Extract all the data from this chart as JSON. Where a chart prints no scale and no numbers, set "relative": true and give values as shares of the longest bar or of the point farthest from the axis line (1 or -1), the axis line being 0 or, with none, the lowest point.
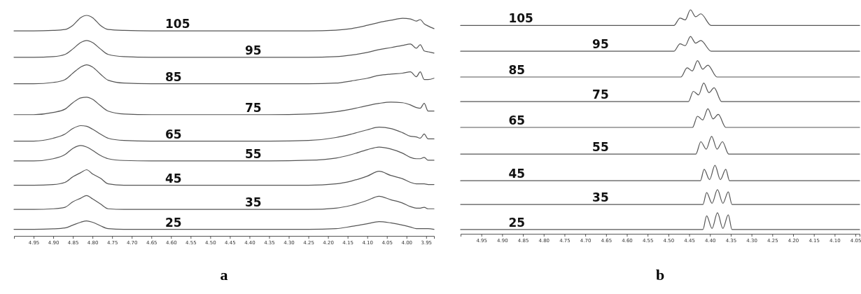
{
  "chart_data": [
    {
      "type": "line",
      "title": "a",
      "relative": true,
      "xlim": [
        5.0,
        3.93
      ],
      "xticks": [
        4.95,
        {
          "value": 4.9,
          "label": "4.90"
        },
        4.85,
        {
          "value": 4.8,
          "label": "4.80"
        },
        4.75,
        {
          "value": 4.7,
          "label": "4.70"
        },
        4.65,
        {
          "value": 4.6,
          "label": "4.60"
        },
        4.55,
        {
          "value": 4.5,
          "label": "4.50"
        },
        4.45,
        {
          "value": 4.4,
          "label": "4.40"
        },
        4.35,
        {
          "value": 4.3,
          "label": "4.30"
        },
        4.25,
        {
          "value": 4.2,
          "label": "4.20"
        },
        4.15,
        {
          "value": 4.1,
          "label": "4.10"
        },
        4.05,
        {
          "value": 4,
          "label": "4.00"
        },
        3.95
      ],
      "x": [
        5.0,
        4.95,
        4.9,
        4.87,
        4.85,
        4.83,
        4.815,
        4.8,
        4.78,
        4.76,
        4.72,
        4.65,
        4.5,
        4.35,
        4.25,
        4.18,
        4.14,
        4.1,
        4.07,
        4.04,
        4.01,
        3.99,
        3.975,
        3.965,
        3.955,
        3.945,
        3.93
      ],
      "series": [
        {
          "name": "105",
          "color": "#555555",
          "values": [
            0.93,
            0.93,
            0.932,
            0.936,
            0.955,
            0.99,
            1.0,
            0.99,
            0.955,
            0.936,
            0.932,
            0.93,
            0.93,
            0.93,
            0.93,
            0.933,
            0.94,
            0.955,
            0.968,
            0.978,
            0.987,
            0.984,
            0.974,
            0.981,
            0.962,
            0.952,
            0.94
          ]
        },
        {
          "name": "95",
          "color": "#555555",
          "values": [
            0.81,
            0.81,
            0.813,
            0.823,
            0.848,
            0.877,
            0.886,
            0.877,
            0.848,
            0.823,
            0.813,
            0.81,
            0.81,
            0.81,
            0.81,
            0.813,
            0.82,
            0.832,
            0.845,
            0.854,
            0.864,
            0.87,
            0.851,
            0.867,
            0.839,
            0.835,
            0.829
          ]
        },
        {
          "name": "85",
          "color": "#555555",
          "values": [
            0.69,
            0.69,
            0.696,
            0.709,
            0.738,
            0.766,
            0.776,
            0.766,
            0.734,
            0.706,
            0.693,
            0.69,
            0.69,
            0.69,
            0.69,
            0.693,
            0.703,
            0.715,
            0.728,
            0.734,
            0.738,
            0.744,
            0.722,
            0.744,
            0.709,
            0.709,
            0.715
          ]
        },
        {
          "name": "75",
          "color": "#555555",
          "values": [
            0.55,
            0.55,
            0.56,
            0.575,
            0.604,
            0.626,
            0.629,
            0.62,
            0.591,
            0.566,
            0.553,
            0.55,
            0.55,
            0.55,
            0.553,
            0.563,
            0.575,
            0.591,
            0.601,
            0.607,
            0.604,
            0.594,
            0.582,
            0.579,
            0.601,
            0.566,
            0.566
          ]
        },
        {
          "name": "65",
          "color": "#555555",
          "values": [
            0.43,
            0.43,
            0.443,
            0.462,
            0.487,
            0.5,
            0.497,
            0.484,
            0.462,
            0.443,
            0.433,
            0.43,
            0.43,
            0.43,
            0.433,
            0.446,
            0.462,
            0.481,
            0.493,
            0.487,
            0.468,
            0.452,
            0.449,
            0.443,
            0.462,
            0.44,
            0.44
          ]
        },
        {
          "name": "55",
          "color": "#555555",
          "values": [
            0.34,
            0.34,
            0.35,
            0.369,
            0.397,
            0.41,
            0.403,
            0.388,
            0.365,
            0.35,
            0.342,
            0.34,
            0.34,
            0.34,
            0.343,
            0.353,
            0.369,
            0.391,
            0.403,
            0.394,
            0.375,
            0.356,
            0.35,
            0.35,
            0.356,
            0.343,
            0.343
          ]
        },
        {
          "name": "45",
          "color": "#555555",
          "values": [
            0.23,
            0.23,
            0.233,
            0.243,
            0.268,
            0.287,
            0.3,
            0.281,
            0.262,
            0.236,
            0.23,
            0.23,
            0.23,
            0.23,
            0.23,
            0.236,
            0.249,
            0.271,
            0.293,
            0.274,
            0.259,
            0.243,
            0.236,
            0.236,
            0.236,
            0.233,
            0.233
          ]
        },
        {
          "name": "35",
          "color": "#555555",
          "values": [
            0.12,
            0.12,
            0.123,
            0.13,
            0.155,
            0.171,
            0.183,
            0.168,
            0.145,
            0.123,
            0.12,
            0.12,
            0.12,
            0.12,
            0.12,
            0.126,
            0.139,
            0.161,
            0.18,
            0.164,
            0.149,
            0.133,
            0.126,
            0.126,
            0.13,
            0.123,
            0.123
          ]
        },
        {
          "name": "25",
          "color": "#555555",
          "values": [
            0.03,
            0.03,
            0.032,
            0.036,
            0.049,
            0.062,
            0.068,
            0.062,
            0.046,
            0.033,
            0.03,
            0.03,
            0.03,
            0.03,
            0.03,
            0.033,
            0.043,
            0.055,
            0.065,
            0.059,
            0.049,
            0.04,
            0.033,
            0.033,
            0.033,
            0.033,
            0.03
          ]
        }
      ]
    },
    {
      "type": "line",
      "title": "b",
      "relative": true,
      "xlim": [
        5.0,
        4.04
      ],
      "xticks": [
        4.95,
        {
          "value": 4.9,
          "label": "4.90"
        },
        4.85,
        {
          "value": 4.8,
          "label": "4.80"
        },
        4.75,
        {
          "value": 4.7,
          "label": "4.70"
        },
        4.65,
        {
          "value": 4.6,
          "label": "4.60"
        },
        4.55,
        {
          "value": 4.5,
          "label": "4.50"
        },
        4.45,
        {
          "value": 4.4,
          "label": "4.40"
        },
        4.35,
        {
          "value": 4.3,
          "label": "4.30"
        },
        4.25,
        {
          "value": 4.2,
          "label": "4.20"
        },
        4.15,
        {
          "value": 4.1,
          "label": "4.10"
        },
        4.05
      ],
      "series": [
        {
          "name": "105",
          "color": "#555555",
          "x": [
            5.0,
            4.6,
            4.487,
            4.472,
            4.4595,
            4.447,
            4.4345,
            4.422,
            4.397,
            4.2,
            4.04
          ],
          "values": [
            0.93,
            0.93,
            0.93,
            0.963,
            0.955,
            1.0,
            0.969,
            0.982,
            0.93,
            0.93,
            0.93
          ]
        },
        {
          "name": "95",
          "color": "#555555",
          "x": [
            5.0,
            4.6,
            4.487,
            4.472,
            4.4595,
            4.447,
            4.4345,
            4.422,
            4.397,
            4.2,
            4.04
          ],
          "values": [
            0.815,
            0.815,
            0.815,
            0.848,
            0.84,
            0.881,
            0.851,
            0.863,
            0.815,
            0.815,
            0.815
          ]
        },
        {
          "name": "85",
          "color": "#555555",
          "x": [
            5.0,
            4.6,
            4.47,
            4.455,
            4.4425,
            4.43,
            4.4175,
            4.405,
            4.383,
            4.2,
            4.04
          ],
          "values": [
            0.7,
            0.7,
            0.7,
            0.741,
            0.727,
            0.773,
            0.735,
            0.753,
            0.7,
            0.7,
            0.7
          ]
        },
        {
          "name": "75",
          "color": "#555555",
          "x": [
            5.0,
            4.6,
            4.452,
            4.44,
            4.4275,
            4.415,
            4.4025,
            4.39,
            4.372,
            4.2,
            4.04
          ],
          "values": [
            0.59,
            0.59,
            0.59,
            0.636,
            0.62,
            0.673,
            0.63,
            0.652,
            0.59,
            0.59,
            0.59
          ]
        },
        {
          "name": "65",
          "color": "#555555",
          "x": [
            5.0,
            4.6,
            4.442,
            4.43,
            4.4175,
            4.405,
            4.3925,
            4.38,
            4.362,
            4.2,
            4.04
          ],
          "values": [
            0.475,
            0.475,
            0.475,
            0.525,
            0.508,
            0.558,
            0.513,
            0.533,
            0.475,
            0.475,
            0.475
          ]
        },
        {
          "name": "55",
          "color": "#555555",
          "x": [
            5.0,
            4.6,
            4.434,
            4.422,
            4.409,
            4.396,
            4.383,
            4.37,
            4.355,
            4.2,
            4.04
          ],
          "values": [
            0.356,
            0.356,
            0.356,
            0.411,
            0.378,
            0.435,
            0.378,
            0.411,
            0.356,
            0.356,
            0.356
          ]
        },
        {
          "name": "45",
          "color": "#555555",
          "x": [
            5.0,
            4.6,
            4.423,
            4.414,
            4.401,
            4.388,
            4.375,
            4.362,
            4.353,
            4.2,
            4.04
          ],
          "values": [
            0.237,
            0.237,
            0.237,
            0.288,
            0.242,
            0.306,
            0.242,
            0.288,
            0.237,
            0.237,
            0.237
          ]
        },
        {
          "name": "35",
          "color": "#555555",
          "x": [
            5.0,
            4.6,
            4.417,
            4.408,
            4.395,
            4.382,
            4.369,
            4.356,
            4.347,
            4.2,
            4.04
          ],
          "values": [
            0.131,
            0.131,
            0.131,
            0.184,
            0.136,
            0.197,
            0.136,
            0.187,
            0.131,
            0.131,
            0.131
          ]
        },
        {
          "name": "25",
          "color": "#555555",
          "x": [
            5.0,
            4.6,
            4.417,
            4.408,
            4.395,
            4.382,
            4.369,
            4.356,
            4.347,
            4.2,
            4.04
          ],
          "values": [
            0.019,
            0.019,
            0.019,
            0.08,
            0.024,
            0.094,
            0.024,
            0.085,
            0.019,
            0.019,
            0.019
          ]
        }
      ]
    }
  ]
}
